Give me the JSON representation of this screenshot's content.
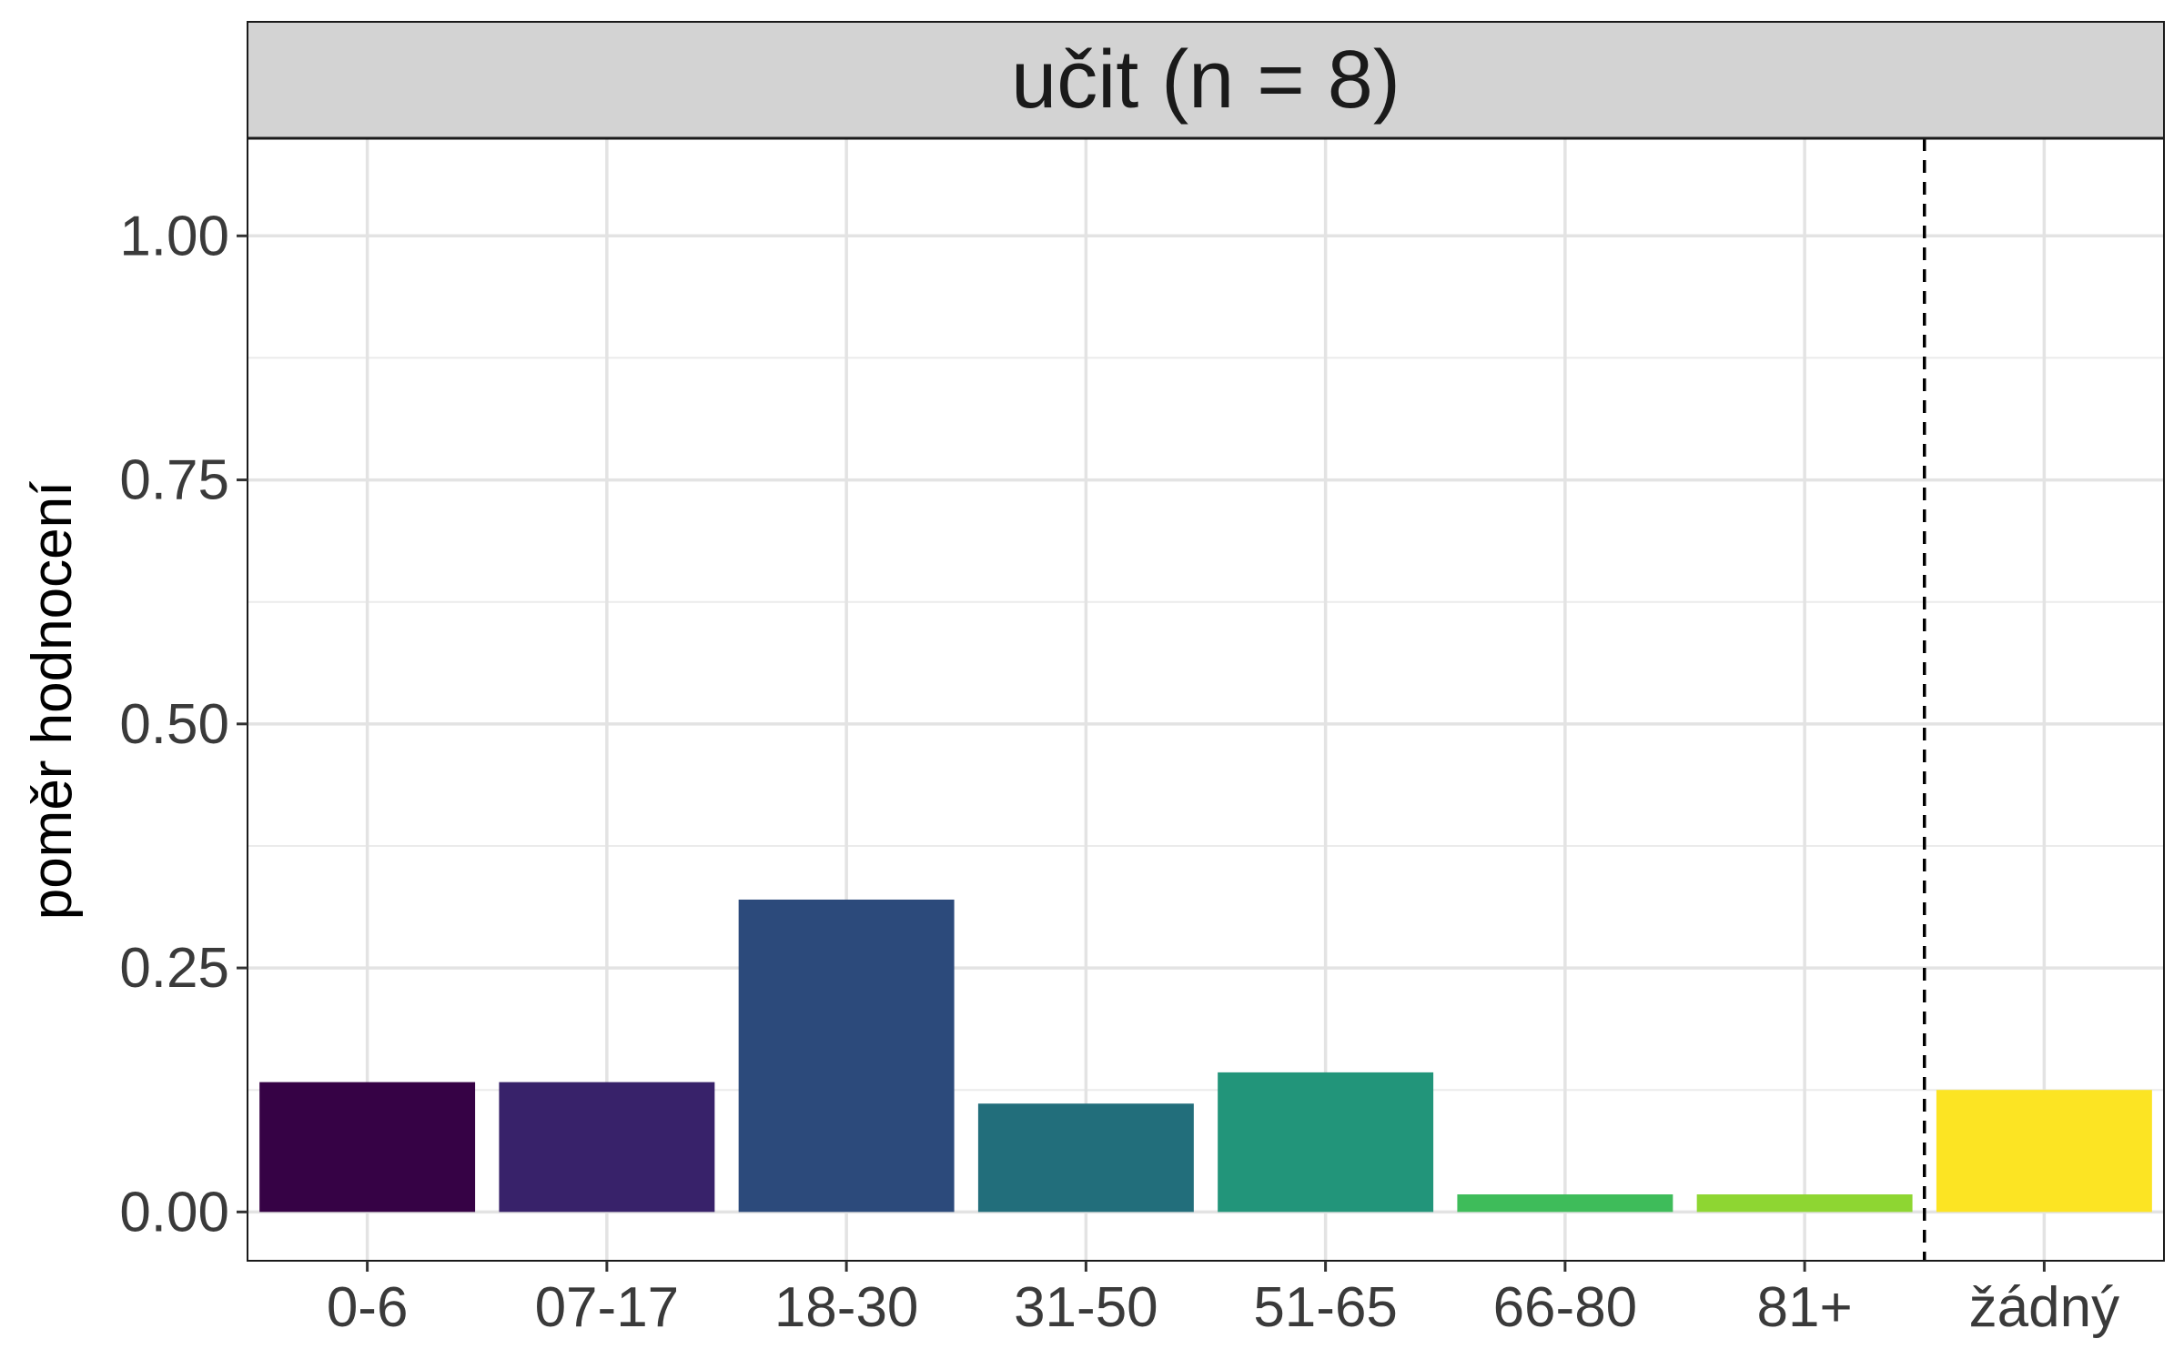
{
  "chart_data": {
    "type": "bar",
    "title": "učit (n = 8)",
    "xlabel": "",
    "ylabel": "poměr hodnocení",
    "ylim": [
      -0.05,
      1.1
    ],
    "yticks": [
      "0.00",
      "0.25",
      "0.50",
      "0.75",
      "1.00"
    ],
    "ytick_values": [
      0,
      0.25,
      0.5,
      0.75,
      1.0
    ],
    "categories": [
      "0-6",
      "07-17",
      "18-30",
      "31-50",
      "51-65",
      "66-80",
      "81+",
      "žádný"
    ],
    "values": [
      0.133,
      0.133,
      0.32,
      0.111,
      0.143,
      0.018,
      0.018,
      0.125
    ],
    "colors": [
      "#360245",
      "#38226A",
      "#2C4A7B",
      "#226E7B",
      "#22957A",
      "#3EBC5A",
      "#8ED632",
      "#FCE423"
    ],
    "grid": true,
    "legend": "none",
    "reference_line_after_category": "81+",
    "reference_line_style": "dashed"
  }
}
